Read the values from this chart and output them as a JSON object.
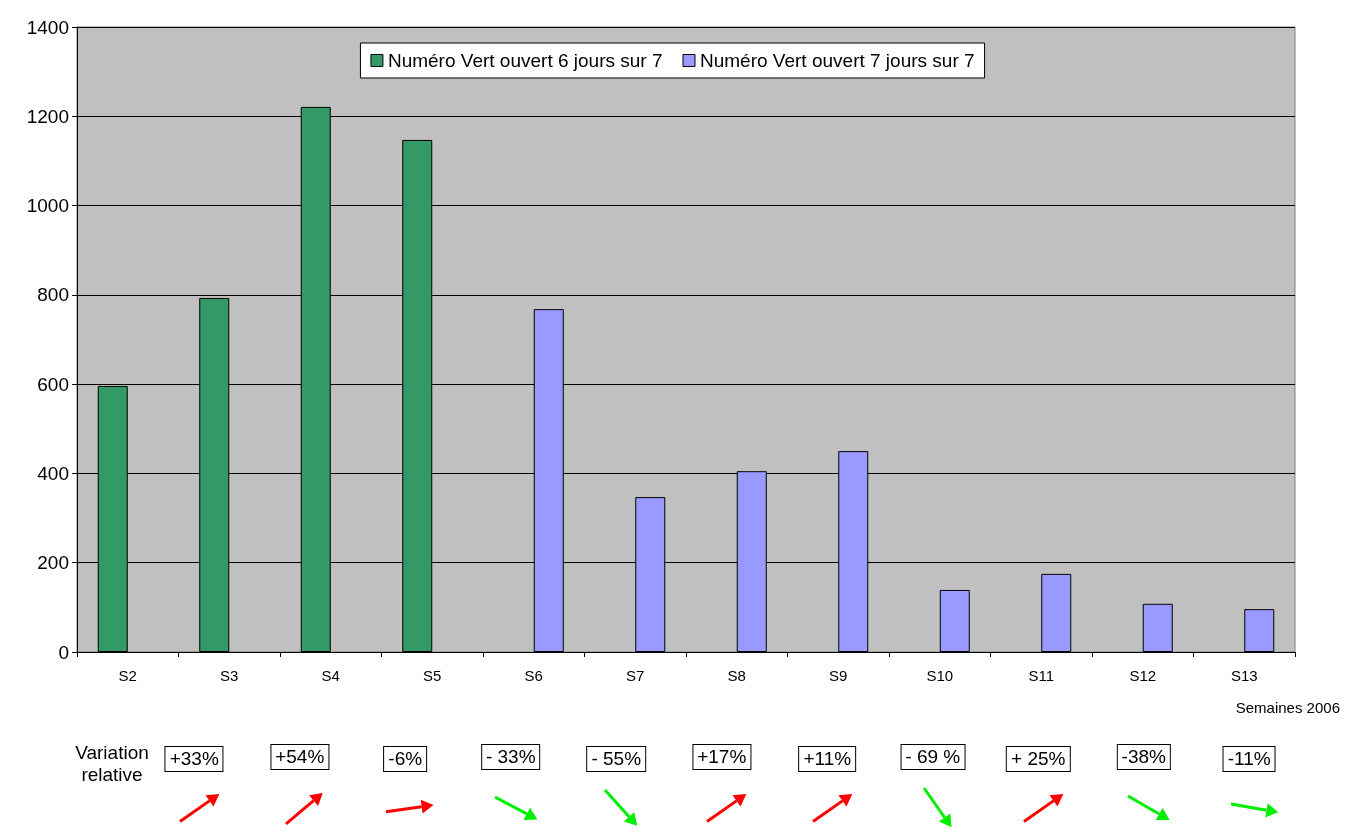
{
  "chart_data": {
    "type": "bar",
    "xlabel": "Semaines 2006",
    "categories": [
      "S2",
      "S3",
      "S4",
      "S5",
      "S6",
      "S7",
      "S8",
      "S9",
      "S10",
      "S11",
      "S12",
      "S13"
    ],
    "series": [
      {
        "name": "Numéro Vert ouvert 6 jours sur 7",
        "color": "#339966",
        "values": [
          596,
          793,
          1221,
          1147,
          null,
          null,
          null,
          null,
          null,
          null,
          null,
          null
        ]
      },
      {
        "name": "Numéro Vert ouvert 7 jours sur 7",
        "color": "#9999ff",
        "values": [
          null,
          null,
          null,
          null,
          768,
          347,
          405,
          450,
          139,
          175,
          108,
          96
        ]
      }
    ],
    "ylim": [
      0,
      1400
    ],
    "yticks": [
      0,
      200,
      400,
      600,
      800,
      1000,
      1200,
      1400
    ],
    "grid": "y",
    "legend": "top",
    "annotations": [
      "Variation relative",
      "+33%",
      "+54%",
      "-6%",
      "- 33%",
      "- 55%",
      "+17%",
      "+11%",
      "- 69 %",
      "+ 25%",
      "-38%",
      "-11%"
    ]
  }
}
